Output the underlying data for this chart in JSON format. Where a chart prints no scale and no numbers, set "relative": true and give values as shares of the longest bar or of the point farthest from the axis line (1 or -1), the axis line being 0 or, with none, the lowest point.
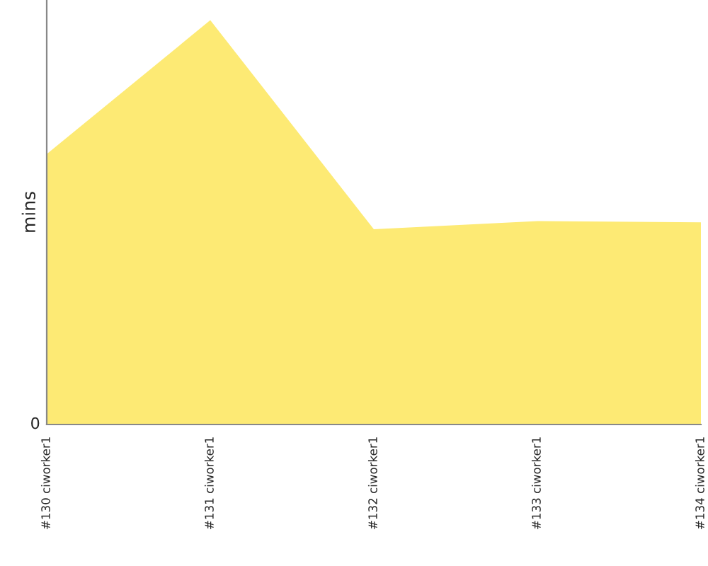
{
  "chart_data": {
    "type": "area",
    "relative": true,
    "ylabel": "mins",
    "categories": [
      "#130 ciworker1",
      "#131 ciworker1",
      "#132 ciworker1",
      "#133 ciworker1",
      "#134 ciworker1"
    ],
    "series": [
      {
        "color": "#fdea74",
        "values": [
          0.669,
          1,
          0.483,
          0.503,
          0.5
        ]
      }
    ],
    "annotations": [
      "0"
    ],
    "grid": false,
    "legend": false
  }
}
